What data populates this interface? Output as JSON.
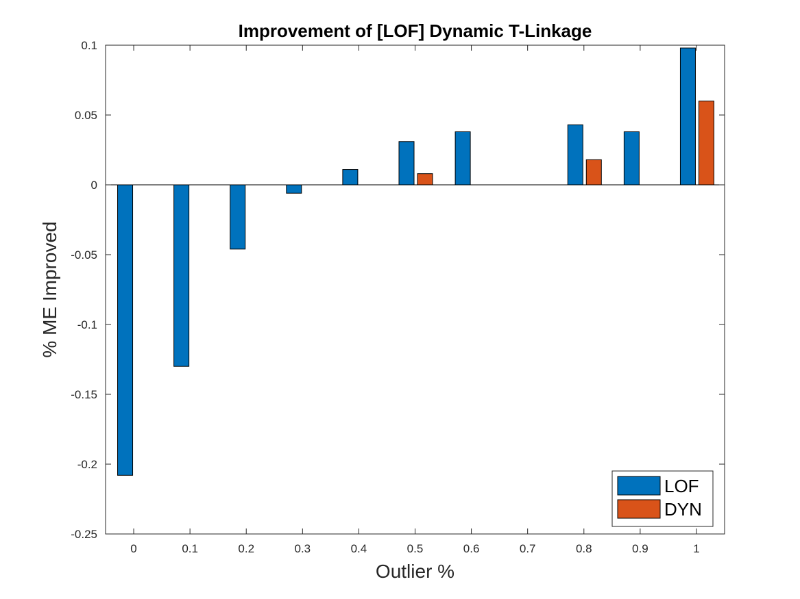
{
  "chart_data": {
    "type": "bar",
    "title": "Improvement of [LOF] Dynamic T-Linkage",
    "xlabel": "Outlier %",
    "ylabel": "% ME Improved",
    "categories": [
      "0",
      "0.1",
      "0.2",
      "0.3",
      "0.4",
      "0.5",
      "0.6",
      "0.7",
      "0.8",
      "0.9",
      "1"
    ],
    "series": [
      {
        "name": "LOF",
        "color": "#0072BD",
        "values": [
          -0.208,
          -0.13,
          -0.046,
          -0.006,
          0.011,
          0.031,
          0.038,
          0.0,
          0.043,
          0.038,
          0.098
        ]
      },
      {
        "name": "DYN",
        "color": "#D95319",
        "values": [
          0.0,
          0.0,
          0.0,
          0.0,
          0.0,
          0.008,
          0.0,
          0.0,
          0.018,
          0.0,
          0.06
        ]
      }
    ],
    "ylim": [
      -0.25,
      0.1
    ],
    "yticks": [
      -0.25,
      -0.2,
      -0.15,
      -0.1,
      -0.05,
      0,
      0.05,
      0.1
    ],
    "ytick_labels": [
      "-0.25",
      "-0.2",
      "-0.15",
      "-0.1",
      "-0.05",
      "0",
      "0.05",
      "0.1"
    ],
    "grid": false,
    "legend_position": "bottom-right"
  }
}
